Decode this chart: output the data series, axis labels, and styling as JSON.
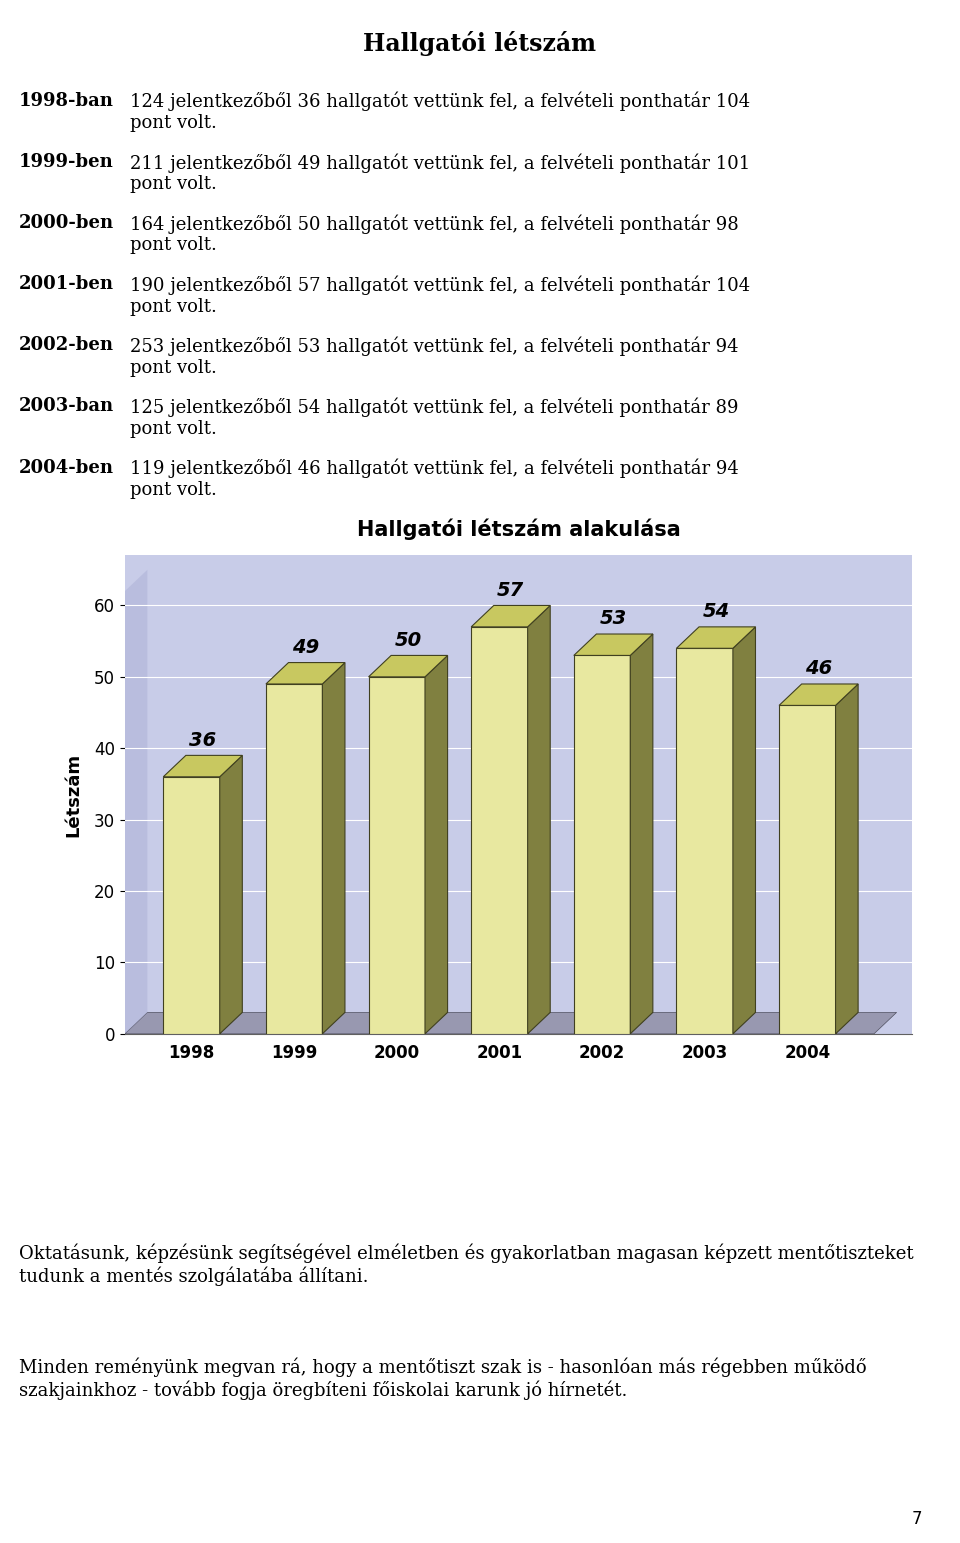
{
  "title_main": "Hallgatói létszám",
  "chart_title": "Hallgatói létszám alakulása",
  "ylabel": "Létszám",
  "years": [
    1998,
    1999,
    2000,
    2001,
    2002,
    2003,
    2004
  ],
  "values": [
    36,
    49,
    50,
    57,
    53,
    54,
    46
  ],
  "yticks": [
    0,
    10,
    20,
    30,
    40,
    50,
    60
  ],
  "text_prefixes": [
    "1998-ban",
    "1999-ben",
    "2000-ben",
    "2001-ben",
    "2002-ben",
    "2003-ban",
    "2004-ben"
  ],
  "text_contents": [
    "124 jelentkezőből 36 hallgatót vettünk fel, a felvételi ponthatár 104\npont volt.",
    "211 jelentkezőből 49 hallgatót vettünk fel, a felvételi ponthatár 101\npont volt.",
    "164 jelentkezőből 50 hallgatót vettünk fel, a felvételi ponthatár 98\npont volt.",
    "190 jelentkezőből 57 hallgatót vettünk fel, a felvételi ponthatár 104\npont volt.",
    "253 jelentkezőből 53 hallgatót vettünk fel, a felvételi ponthatár 94\npont volt.",
    "125 jelentkezőből 54 hallgatót vettünk fel, a felvételi ponthatár 89\npont volt.",
    "119 jelentkezőből 46 hallgatót vettünk fel, a felvételi ponthatár 94\npont volt."
  ],
  "footer_text1": "Oktatásunk, képzésünk segítségével elméletben és gyakorlatban magasan képzett mentőtiszteket tudunk a mentés szolgálatába állítani.",
  "footer_text2": "Minden reményünk megvan rá, hogy a mentőtiszt szak is - hasonlóan más régebben működő szakjainkhoz - tovább fogja öregbíteni főiskolai karunk jó hírnetét.",
  "bar_face_color": "#e8e8a0",
  "bar_top_color": "#c8c860",
  "bar_side_color": "#808040",
  "bar_edge_color": "#404020",
  "bg_color": "#c8cce8",
  "page_bg": "#ffffff",
  "page_number": "7"
}
